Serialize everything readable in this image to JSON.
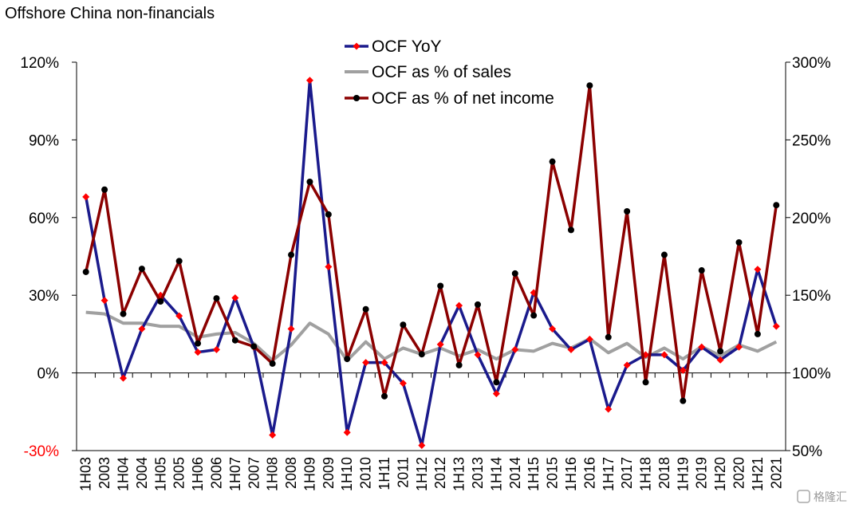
{
  "chart_data": {
    "type": "line",
    "title": "Offshore China non-financials",
    "watermark": "格隆汇",
    "categories": [
      "1H03",
      "2003",
      "1H04",
      "2004",
      "1H05",
      "2005",
      "1H06",
      "2006",
      "1H07",
      "2007",
      "1H08",
      "2008",
      "1H09",
      "2009",
      "1H10",
      "2010",
      "1H11",
      "2011",
      "1H12",
      "2012",
      "1H13",
      "2013",
      "1H14",
      "2014",
      "1H15",
      "2015",
      "1H16",
      "2016",
      "1H17",
      "2017",
      "1H18",
      "2018",
      "1H19",
      "2019",
      "1H20",
      "2020",
      "1H21",
      "2021"
    ],
    "left_axis": {
      "ylim": [
        -0.3,
        1.2
      ],
      "ticks": [
        "-30%",
        "0%",
        "30%",
        "60%",
        "90%",
        "120%"
      ],
      "tick_values": [
        -0.3,
        0,
        0.3,
        0.6,
        0.9,
        1.2
      ]
    },
    "right_axis": {
      "ylim": [
        0.5,
        3.0
      ],
      "ticks": [
        "50%",
        "100%",
        "150%",
        "200%",
        "250%",
        "300%"
      ],
      "tick_values": [
        0.5,
        1.0,
        1.5,
        2.0,
        2.5,
        3.0
      ]
    },
    "legend": {
      "placement": "top-center"
    },
    "series": [
      {
        "name": "OCF YoY",
        "axis": "left",
        "color": "#1a1a8c",
        "marker": "diamond",
        "marker_color": "#ff0000",
        "values": [
          0.68,
          0.28,
          -0.02,
          0.17,
          0.3,
          0.22,
          0.08,
          0.09,
          0.29,
          0.1,
          -0.24,
          0.17,
          1.13,
          0.41,
          -0.23,
          0.04,
          0.04,
          -0.04,
          -0.28,
          0.11,
          0.26,
          0.07,
          -0.08,
          0.09,
          0.31,
          0.17,
          0.09,
          0.13,
          -0.14,
          0.03,
          0.07,
          0.07,
          0.01,
          0.1,
          0.05,
          0.1,
          0.4,
          0.18
        ]
      },
      {
        "name": "OCF as % of sales",
        "axis": "right",
        "color": "#a0a0a0",
        "marker": "none",
        "values": [
          1.39,
          1.38,
          1.32,
          1.32,
          1.3,
          1.3,
          1.23,
          1.25,
          1.26,
          1.19,
          1.08,
          1.18,
          1.32,
          1.25,
          1.08,
          1.2,
          1.09,
          1.16,
          1.12,
          1.16,
          1.11,
          1.15,
          1.09,
          1.15,
          1.14,
          1.19,
          1.16,
          1.22,
          1.13,
          1.19,
          1.1,
          1.16,
          1.09,
          1.17,
          1.11,
          1.18,
          1.14,
          1.2
        ]
      },
      {
        "name": "OCF as % of net income",
        "axis": "right",
        "color": "#8b0000",
        "marker": "circle",
        "marker_color": "#000000",
        "values": [
          1.65,
          2.18,
          1.38,
          1.67,
          1.46,
          1.72,
          1.19,
          1.48,
          1.21,
          1.17,
          1.06,
          1.76,
          2.23,
          2.02,
          1.09,
          1.41,
          0.85,
          1.31,
          1.12,
          1.56,
          1.05,
          1.44,
          0.94,
          1.64,
          1.37,
          2.36,
          1.92,
          2.85,
          1.23,
          2.04,
          0.94,
          1.76,
          0.82,
          1.66,
          1.14,
          1.84,
          1.25,
          2.08
        ]
      }
    ]
  }
}
